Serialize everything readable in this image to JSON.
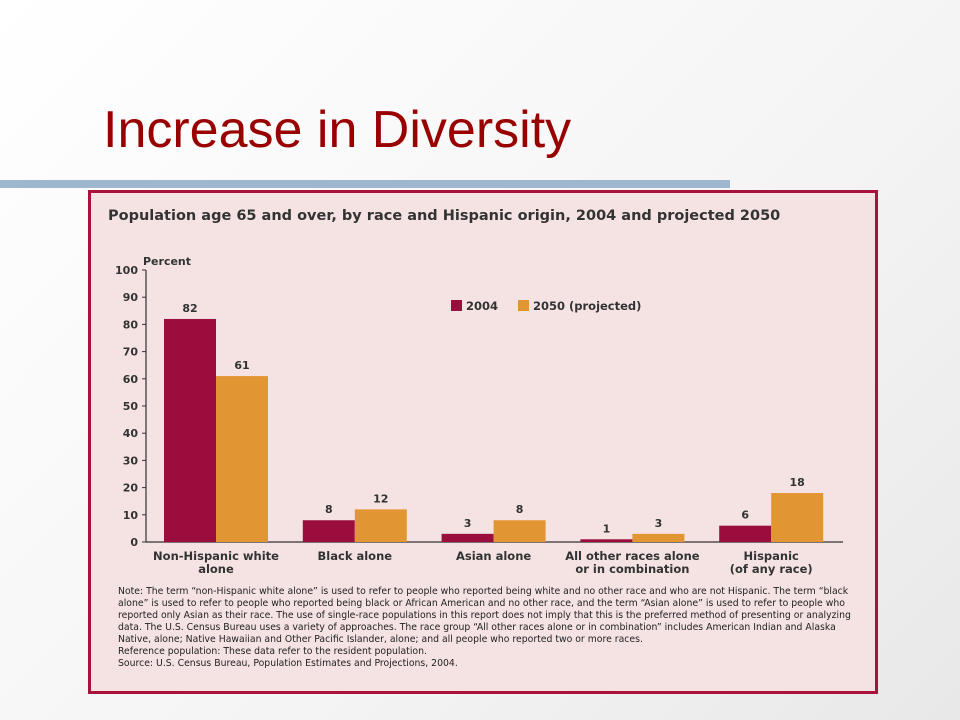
{
  "slide": {
    "title": "Increase in Diversity"
  },
  "colors": {
    "title": "#990000",
    "frame": "#a8133b",
    "panel": "#f5e3e4",
    "series_2004": "#9b0d3c",
    "series_2050": "#e29633",
    "rule": "#9fb6cf"
  },
  "chart_data": {
    "type": "bar",
    "title": "Population age 65 and over, by race and Hispanic origin, 2004 and projected 2050",
    "ylabel": "Percent",
    "ylim": [
      0,
      100
    ],
    "yticks": [
      "0",
      "10",
      "20",
      "30",
      "40",
      "50",
      "60",
      "70",
      "80",
      "90",
      "100"
    ],
    "categories": [
      [
        "Non-Hispanic white",
        "alone"
      ],
      [
        "Black alone"
      ],
      [
        "Asian alone"
      ],
      [
        "All other races alone",
        "or in combination"
      ],
      [
        "Hispanic",
        "(of any race)"
      ]
    ],
    "series": [
      {
        "name": "2004",
        "values": [
          82,
          8,
          3,
          1,
          6
        ],
        "labels": [
          "82",
          "8",
          "3",
          "1",
          "6"
        ],
        "color": "#9b0d3c"
      },
      {
        "name": "2050 (projected)",
        "values": [
          61,
          12,
          8,
          3,
          18
        ],
        "labels": [
          "61",
          "12",
          "8",
          "3",
          "18"
        ],
        "color": "#e29633"
      }
    ],
    "legend_position": "top-right",
    "grid": false
  },
  "notes": {
    "note": "Note: The term “non-Hispanic white alone” is used to refer to people who reported being white and no other race and who are not Hispanic. The term “black alone” is used to refer to people who reported being black or African American and no other race, and the term “Asian alone” is used to refer to people who reported only Asian as their race.  The use of single-race populations in this report does not imply that this is the preferred method of presenting or analyzing data. The U.S. Census Bureau uses a variety of approaches. The race group “All other races alone or in combination” includes American Indian and Alaska Native, alone; Native Hawaiian and Other Pacific Islander, alone; and all people who reported two or more races.",
    "reference": "Reference population: These data refer to the resident population.",
    "source": "Source: U.S. Census Bureau, Population Estimates and Projections, 2004."
  }
}
